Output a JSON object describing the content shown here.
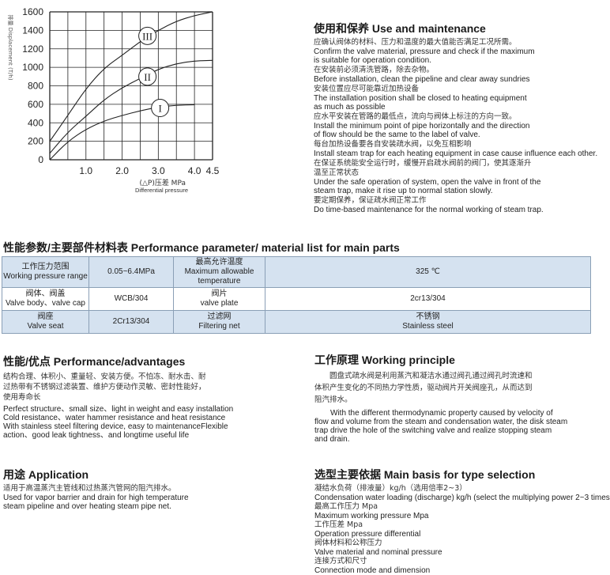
{
  "chart_data": {
    "type": "line",
    "xlabel_cn": "(△P)压差 MPa",
    "xlabel": "Differential pressure",
    "ylabel": "排量 Displacement (T/h)",
    "xlim": [
      0,
      4.5
    ],
    "ylim": [
      0,
      1600
    ],
    "xticks": [
      "1.0",
      "2.0",
      "3.0",
      "4.0",
      "4.5"
    ],
    "yticks": [
      "0",
      "200",
      "400",
      "600",
      "800",
      "1000",
      "1200",
      "1400",
      "1600"
    ],
    "grid": true,
    "series": [
      {
        "name": "I",
        "x": [
          0,
          0.5,
          1,
          1.5,
          2,
          2.5,
          3,
          3.5,
          4
        ],
        "y": [
          0,
          200,
          330,
          420,
          480,
          530,
          570,
          590,
          595
        ]
      },
      {
        "name": "II",
        "x": [
          0,
          0.5,
          1,
          1.5,
          2,
          2.5,
          3,
          3.5,
          4,
          4.5
        ],
        "y": [
          70,
          300,
          470,
          650,
          780,
          880,
          980,
          1040,
          1070,
          1075
        ]
      },
      {
        "name": "III",
        "x": [
          0,
          0.5,
          1,
          1.5,
          2,
          2.5,
          3,
          3.5,
          4,
          4.5
        ],
        "y": [
          200,
          480,
          770,
          990,
          1130,
          1280,
          1400,
          1500,
          1560,
          1600
        ]
      }
    ],
    "labels": [
      {
        "text": "I",
        "x": 3.05,
        "y": 560
      },
      {
        "text": "II",
        "x": 2.7,
        "y": 900
      },
      {
        "text": "III",
        "x": 2.7,
        "y": 1340
      }
    ]
  },
  "maintenance": {
    "title": "使用和保养  Use and maintenance",
    "items": [
      {
        "cn": "应确认阀体的材料、压力和温度的最大值能否满足工况所需。",
        "en": [
          "Confirm the valve material, pressure and check if the maximum",
          "is suitable for operation condition."
        ]
      },
      {
        "cn": "在安装前必须清洗管路，除去杂物。",
        "en": [
          "Before installation, clean the pipeline and clear away sundries"
        ]
      },
      {
        "cn": "安装位置应尽可能靠近加热设备",
        "en": [
          "The installation position shall be closed to heating equipment",
          "as much as possible"
        ]
      },
      {
        "cn": "应水平安装在管路的最低点，流向与阀体上标注的方向一致。",
        "en": [
          "Install the minimum point of pipe horizontally and the direction",
          "of flow should be the same to the label of valve."
        ]
      },
      {
        "cn": "每台加热设备要各自安装疏水阀，以免互相影响",
        "en": [
          "Install steam trap for each heating equipment in case cause influence each other."
        ]
      },
      {
        "cn": "在保证系统能安全运行时，缓慢开启疏水阀前的阀门，使其逐渐升",
        "cn2": "温至正常状态",
        "en": [
          "Under the safe operation of system, open the valve in front of the",
          "steam trap, make it rise up to normal station slowly."
        ]
      },
      {
        "cn": "要定期保养，保证疏水阀正常工作",
        "en": [
          "Do time-based maintenance for the normal working of steam trap."
        ]
      }
    ]
  },
  "params": {
    "title": "性能参数/主要部件材料表  Performance parameter/ material list for main parts",
    "rows": [
      [
        {
          "cn": "工作压力范围",
          "en": "Working pressure range"
        },
        {
          "en": "0.05~6.4MPa"
        },
        {
          "cn": "最高允许温度",
          "en": "Maximum allowable temperature"
        },
        {
          "en": "325 ℃"
        }
      ],
      [
        {
          "cn": "阀体、阀盖",
          "en": "Valve body、valve cap"
        },
        {
          "en": "WCB/304"
        },
        {
          "cn": "阀片",
          "en": "valve plate"
        },
        {
          "en": "2cr13/304"
        }
      ],
      [
        {
          "cn": "阀座",
          "en": "Valve seat"
        },
        {
          "en": "2Cr13/304"
        },
        {
          "cn": "过滤网",
          "en": "Filtering net"
        },
        {
          "cn": "不锈钢",
          "en": "Stainless steel"
        }
      ]
    ]
  },
  "advantages": {
    "title": "性能/优点  Performance/advantages",
    "cn": [
      "结构合理、体积小、重量轻、安装方便。不怕冻、耐水击、耐",
      "过热带有不锈钢过滤装置、维护方便动作灵敏、密封性能好，",
      "使用寿命长"
    ],
    "en": [
      "Perfect structure、small size、light in weight and easy installation",
      "Cold resistance、water hammer resistance and heat resistance",
      "With stainless steel filtering device, easy to maintenanceFlexible",
      "action、good leak tightness、and longtime useful life"
    ]
  },
  "principle": {
    "title": "工作原理  Working principle",
    "cn": [
      "　　圆盘式疏水阀是利用蒸汽和凝洁水通过阀孔通过阀孔时流速和",
      "体积产生变化的不同热力学性质，驱动阀片开关阀座孔，从而达到",
      "阻汽排水。"
    ],
    "en": [
      "　　With the different thermodynamic property caused by velocity of",
      "flow and volume from the steam and condensation water, the disk steam",
      "trap drive the hole of the switching valve and realize stopping steam",
      "and drain."
    ]
  },
  "application": {
    "title": "用途  Application",
    "cn": "适用于高温蒸汽主管线和过热蒸汽管网的阻汽排水。",
    "en": [
      "Used for vapor barrier and drain for high temperature",
      "steam pipeline and over heating steam pipe net."
    ]
  },
  "selection": {
    "title": "选型主要依据  Main basis for type selection",
    "items": [
      {
        "cn": "凝结水负荷（排液量）kg/h（选用倍率2~3）",
        "en": "Condensation water loading (discharge) kg/h (select the multiplying power 2~3 times"
      },
      {
        "cn": "最高工作压力  Mpa",
        "en": "Maximum working pressure Mpa"
      },
      {
        "cn": "工作压差  Mpa",
        "en": "Operation pressure differential"
      },
      {
        "cn": "阀体材料和公称压力",
        "en": "Valve material and nominal pressure"
      },
      {
        "cn": "连接方式和尺寸",
        "en": "Connection mode and dimension"
      }
    ]
  }
}
